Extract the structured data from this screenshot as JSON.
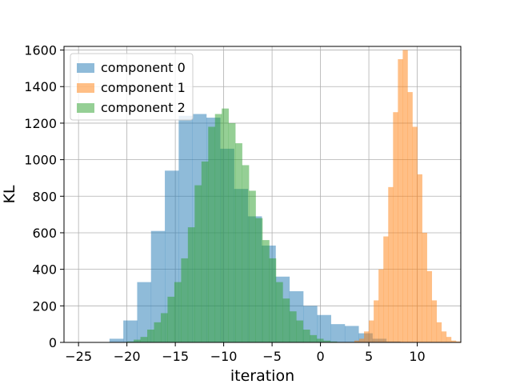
{
  "chart_data": {
    "type": "histogram",
    "xlabel": "iteration",
    "ylabel": "KL",
    "xlim": [
      -26.5,
      14.5
    ],
    "ylim": [
      0,
      1620
    ],
    "xticks": [
      -25,
      -20,
      -15,
      -10,
      -5,
      0,
      5,
      10
    ],
    "yticks": [
      0,
      200,
      400,
      600,
      800,
      1000,
      1200,
      1400,
      1600
    ],
    "grid": true,
    "legend_position": "top-left",
    "series": [
      {
        "name": "component 0",
        "color": "#1f77b4",
        "opacity": 0.5,
        "bin_start": -21.8,
        "bin_width": 1.43,
        "values": [
          20,
          120,
          330,
          610,
          940,
          1240,
          1250,
          1230,
          1060,
          840,
          690,
          530,
          360,
          280,
          200,
          150,
          100,
          90,
          50,
          20,
          5
        ]
      },
      {
        "name": "component 1",
        "color": "#ff7f0e",
        "opacity": 0.5,
        "bin_start": 3.5,
        "bin_width": 0.5,
        "values": [
          10,
          20,
          60,
          120,
          230,
          400,
          580,
          850,
          1260,
          1550,
          1600,
          1370,
          1180,
          920,
          600,
          390,
          230,
          110,
          60,
          30,
          10,
          5
        ]
      },
      {
        "name": "component 2",
        "color": "#2ca02c",
        "opacity": 0.5,
        "bin_start": -20.0,
        "bin_width": 0.7,
        "values": [
          5,
          15,
          30,
          70,
          110,
          160,
          250,
          330,
          460,
          630,
          860,
          990,
          1180,
          1250,
          1280,
          1200,
          1090,
          970,
          830,
          680,
          560,
          460,
          330,
          240,
          170,
          120,
          70,
          40,
          20,
          10,
          5
        ]
      }
    ]
  }
}
